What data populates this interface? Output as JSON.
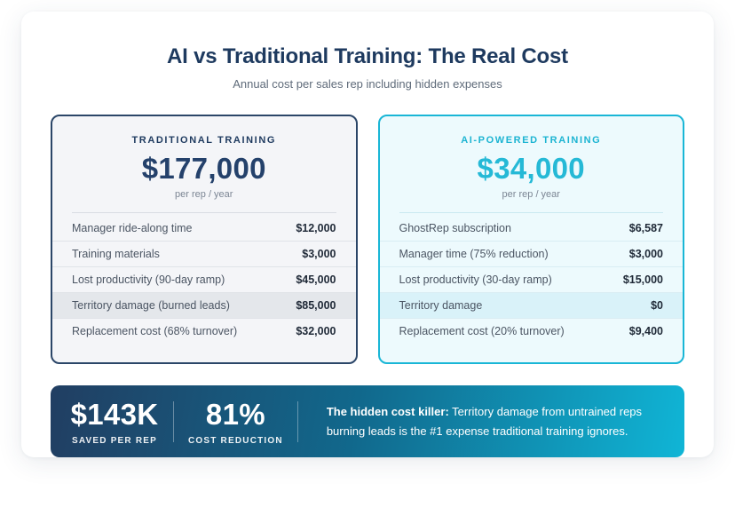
{
  "page": {
    "title": "AI vs Traditional Training: The Real Cost",
    "subtitle": "Annual cost per sales rep including hidden expenses"
  },
  "cards": [
    {
      "label": "TRADITIONAL TRAINING",
      "total": "$177,000",
      "period": "per rep / year",
      "rows": [
        {
          "label": "Manager ride-along time",
          "value": "$12,000"
        },
        {
          "label": "Training materials",
          "value": "$3,000"
        },
        {
          "label": "Lost productivity (90-day ramp)",
          "value": "$45,000"
        },
        {
          "label": "Territory damage (burned leads)",
          "value": "$85,000"
        },
        {
          "label": "Replacement cost (68% turnover)",
          "value": "$32,000"
        }
      ]
    },
    {
      "label": "AI-POWERED TRAINING",
      "total": "$34,000",
      "period": "per rep / year",
      "rows": [
        {
          "label": "GhostRep subscription",
          "value": "$6,587"
        },
        {
          "label": "Manager time (75% reduction)",
          "value": "$3,000"
        },
        {
          "label": "Lost productivity (30-day ramp)",
          "value": "$15,000"
        },
        {
          "label": "Territory damage",
          "value": "$0"
        },
        {
          "label": "Replacement cost (20% turnover)",
          "value": "$9,400"
        }
      ]
    }
  ],
  "banner": {
    "stats": [
      {
        "value": "$143K",
        "label": "SAVED PER REP"
      },
      {
        "value": "81%",
        "label": "COST REDUCTION"
      }
    ],
    "note_bold": "The hidden cost killer:",
    "note_rest": " Territory damage from untrained reps burning leads is the #1 expense traditional training ignores."
  },
  "colors": {
    "navy": "#1e3a5f",
    "navy_number": "#24416b",
    "cyan": "#25b9d6",
    "cyan_border": "#19b6d6",
    "traditional_card_bg": "#f4f5f8",
    "ai_card_bg": "#edfafd",
    "traditional_highlight_bg": "#e4e7eb",
    "ai_highlight_bg": "#d9f2f9",
    "banner_gradient_start": "#213e62",
    "banner_gradient_end": "#10b5d6",
    "label_gray": "#4b5563",
    "subtitle_gray": "#5f6b7a"
  },
  "chart_data": {
    "type": "table",
    "title": "AI vs Traditional Training: The Real Cost",
    "subtitle": "Annual cost per sales rep including hidden expenses",
    "series": [
      {
        "name": "Traditional Training",
        "total_per_rep_year": 177000,
        "items": [
          {
            "category": "Manager ride-along time",
            "value": 12000
          },
          {
            "category": "Training materials",
            "value": 3000
          },
          {
            "category": "Lost productivity (90-day ramp)",
            "value": 45000
          },
          {
            "category": "Territory damage (burned leads)",
            "value": 85000,
            "highlighted": true
          },
          {
            "category": "Replacement cost (68% turnover)",
            "value": 32000
          }
        ]
      },
      {
        "name": "AI-Powered Training",
        "total_per_rep_year": 34000,
        "items": [
          {
            "category": "GhostRep subscription",
            "value": 6587
          },
          {
            "category": "Manager time (75% reduction)",
            "value": 3000
          },
          {
            "category": "Lost productivity (30-day ramp)",
            "value": 15000
          },
          {
            "category": "Territory damage",
            "value": 0,
            "highlighted": true
          },
          {
            "category": "Replacement cost (20% turnover)",
            "value": 9400
          }
        ]
      }
    ],
    "summary": {
      "saved_per_rep": 143000,
      "cost_reduction_percent": 81
    }
  }
}
